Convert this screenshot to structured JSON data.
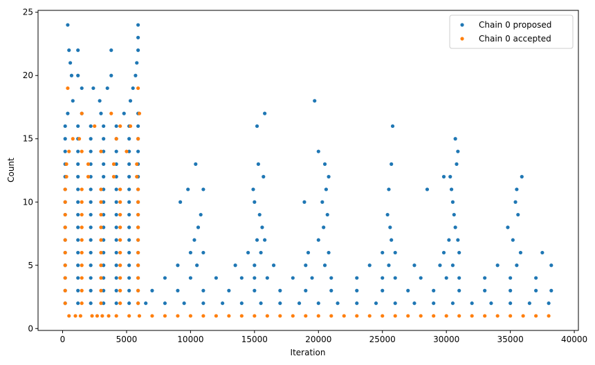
{
  "chart_data": {
    "type": "scatter",
    "x_label": "Iteration",
    "y_label": "Count",
    "xlim": [
      -1920,
      40320
    ],
    "ylim": [
      -0.15,
      25.15
    ],
    "xticks": [
      0,
      5000,
      10000,
      15000,
      20000,
      25000,
      30000,
      35000,
      40000
    ],
    "yticks": [
      0,
      5,
      10,
      15,
      20,
      25
    ],
    "legend": "upper right",
    "series": [
      {
        "name": "Chain 0 proposed",
        "color": "#1f77b4",
        "x": [
          6500,
          8000,
          9500,
          11000,
          12500,
          14000,
          15500,
          17000,
          18500,
          20000,
          21500,
          23000,
          24500,
          26000,
          27500,
          29000,
          30500,
          32000,
          33500,
          35000,
          36500,
          38000,
          7000,
          9000,
          11000,
          13000,
          15000,
          17000,
          19000,
          21000,
          23000,
          25000,
          27000,
          29000,
          31000,
          33000,
          35000,
          37000,
          38200,
          8000,
          10000,
          12000,
          14000,
          15000,
          16000,
          18000,
          19500,
          21000,
          23000,
          25000,
          26000,
          28000,
          30000,
          31000,
          33000,
          35000,
          37000,
          9000,
          10500,
          13500,
          15000,
          16500,
          19000,
          20500,
          24000,
          25500,
          27500,
          29500,
          30500,
          34000,
          35500,
          38200,
          10000,
          11000,
          14500,
          15500,
          19200,
          20800,
          25000,
          26000,
          29800,
          31000,
          35800,
          37500,
          10300,
          15200,
          15800,
          20000,
          25700,
          30200,
          30900,
          35200,
          10600,
          15600,
          20400,
          25600,
          30700,
          34800,
          10800,
          15400,
          20700,
          25400,
          30600,
          35600,
          9200,
          15000,
          18900,
          20300,
          30500,
          35400,
          9800,
          11000,
          14900,
          20600,
          25500,
          28500,
          30400,
          35500,
          15700,
          20800,
          29800,
          30300,
          35900,
          10400,
          15300,
          20500,
          25700,
          30800,
          20000,
          30900,
          30700,
          15200,
          25800,
          15800,
          19700,
          200,
          1200,
          2200,
          3200,
          4200,
          5200,
          5900,
          200,
          1200,
          2200,
          3200,
          4200,
          5200,
          5900,
          200,
          1200,
          2200,
          3200,
          4200,
          5200,
          5900,
          200,
          1200,
          2200,
          3200,
          4200,
          5200,
          5900,
          200,
          1200,
          2200,
          3200,
          4200,
          5200,
          5900,
          200,
          1200,
          2200,
          3200,
          4200,
          5200,
          5900,
          200,
          1200,
          2200,
          3200,
          4200,
          5200,
          5900,
          200,
          1200,
          2200,
          3200,
          4200,
          5200,
          5900,
          200,
          1200,
          2200,
          3200,
          4200,
          5200,
          5900,
          200,
          1200,
          2200,
          3200,
          4200,
          5200,
          5900,
          200,
          1200,
          2200,
          3200,
          4200,
          5200,
          5900,
          200,
          1200,
          2200,
          3200,
          4200,
          5200,
          5900,
          200,
          1200,
          2200,
          3200,
          4200,
          5200,
          5900,
          200,
          1200,
          2200,
          3200,
          4200,
          5200,
          5900,
          200,
          1200,
          2200,
          3200,
          4200,
          5200,
          5900,
          400,
          1500,
          3000,
          4800,
          5900,
          800,
          2900,
          5300,
          1500,
          2400,
          3500,
          5500,
          700,
          1200,
          3800,
          5700,
          600,
          5800,
          500,
          1200,
          3800,
          5900,
          5900,
          400,
          5900
        ],
        "y": [
          2,
          2,
          2,
          2,
          2,
          2,
          2,
          2,
          2,
          2,
          2,
          2,
          2,
          2,
          2,
          2,
          2,
          2,
          2,
          2,
          2,
          2,
          3,
          3,
          3,
          3,
          3,
          3,
          3,
          3,
          3,
          3,
          3,
          3,
          3,
          3,
          3,
          3,
          3,
          4,
          4,
          4,
          4,
          4,
          4,
          4,
          4,
          4,
          4,
          4,
          4,
          4,
          4,
          4,
          4,
          4,
          4,
          5,
          5,
          5,
          5,
          5,
          5,
          5,
          5,
          5,
          5,
          5,
          5,
          5,
          5,
          5,
          6,
          6,
          6,
          6,
          6,
          6,
          6,
          6,
          6,
          6,
          6,
          6,
          7,
          7,
          7,
          7,
          7,
          7,
          7,
          7,
          8,
          8,
          8,
          8,
          8,
          8,
          9,
          9,
          9,
          9,
          9,
          9,
          10,
          10,
          10,
          10,
          10,
          10,
          11,
          11,
          11,
          11,
          11,
          11,
          11,
          11,
          12,
          12,
          12,
          12,
          12,
          13,
          13,
          13,
          13,
          13,
          14,
          14,
          15,
          16,
          16,
          17,
          18,
          2,
          2,
          2,
          2,
          2,
          2,
          2,
          3,
          3,
          3,
          3,
          3,
          3,
          3,
          4,
          4,
          4,
          4,
          4,
          4,
          4,
          5,
          5,
          5,
          5,
          5,
          5,
          5,
          6,
          6,
          6,
          6,
          6,
          6,
          6,
          7,
          7,
          7,
          7,
          7,
          7,
          7,
          8,
          8,
          8,
          8,
          8,
          8,
          8,
          9,
          9,
          9,
          9,
          9,
          9,
          9,
          10,
          10,
          10,
          10,
          10,
          10,
          10,
          11,
          11,
          11,
          11,
          11,
          11,
          11,
          12,
          12,
          12,
          12,
          12,
          12,
          12,
          13,
          13,
          13,
          13,
          13,
          13,
          13,
          14,
          14,
          14,
          14,
          14,
          14,
          14,
          15,
          15,
          15,
          15,
          15,
          15,
          15,
          16,
          16,
          16,
          16,
          16,
          16,
          16,
          17,
          17,
          17,
          17,
          17,
          18,
          18,
          18,
          19,
          19,
          19,
          19,
          20,
          20,
          20,
          20,
          21,
          21,
          22,
          22,
          22,
          22,
          23,
          24,
          24
        ]
      },
      {
        "name": "Chain 0 accepted",
        "color": "#ff7f0e",
        "x": [
          500,
          1000,
          1400,
          2300,
          2700,
          3100,
          3600,
          4200,
          5200,
          6000,
          7000,
          8000,
          9000,
          10000,
          11000,
          12000,
          13000,
          14000,
          15000,
          16000,
          17000,
          18000,
          19000,
          20000,
          21000,
          22000,
          23000,
          24000,
          25000,
          26000,
          27000,
          28000,
          29000,
          30000,
          31000,
          32000,
          33000,
          34000,
          35000,
          36000,
          37000,
          38000,
          200,
          1500,
          3000,
          4500,
          5900,
          200,
          1500,
          3000,
          4500,
          5900,
          200,
          1500,
          3000,
          4500,
          5900,
          200,
          1500,
          3000,
          4500,
          5900,
          200,
          1500,
          3000,
          4500,
          5900,
          200,
          1500,
          3000,
          4500,
          5900,
          200,
          1500,
          3000,
          4500,
          5900,
          200,
          1500,
          3000,
          4500,
          5900,
          200,
          1500,
          3000,
          4500,
          5900,
          200,
          1500,
          3000,
          4500,
          5900,
          300,
          2000,
          4000,
          5800,
          300,
          2000,
          4000,
          5800,
          500,
          1500,
          3000,
          5000,
          800,
          1300,
          4200,
          5900,
          2500,
          4500,
          5300,
          1500,
          3800,
          6000,
          400,
          5900
        ],
        "y": [
          1,
          1,
          1,
          1,
          1,
          1,
          1,
          1,
          1,
          1,
          1,
          1,
          1,
          1,
          1,
          1,
          1,
          1,
          1,
          1,
          1,
          1,
          1,
          1,
          1,
          1,
          1,
          1,
          1,
          1,
          1,
          1,
          1,
          1,
          1,
          1,
          1,
          1,
          1,
          1,
          1,
          1,
          2,
          2,
          2,
          2,
          2,
          3,
          3,
          3,
          3,
          3,
          4,
          4,
          4,
          4,
          4,
          5,
          5,
          5,
          5,
          5,
          6,
          6,
          6,
          6,
          6,
          7,
          7,
          7,
          7,
          7,
          8,
          8,
          8,
          8,
          8,
          9,
          9,
          9,
          9,
          9,
          10,
          10,
          10,
          10,
          10,
          11,
          11,
          11,
          11,
          11,
          12,
          12,
          12,
          12,
          13,
          13,
          13,
          13,
          14,
          14,
          14,
          14,
          15,
          15,
          15,
          15,
          16,
          16,
          16,
          17,
          17,
          17,
          19,
          19
        ]
      }
    ]
  }
}
